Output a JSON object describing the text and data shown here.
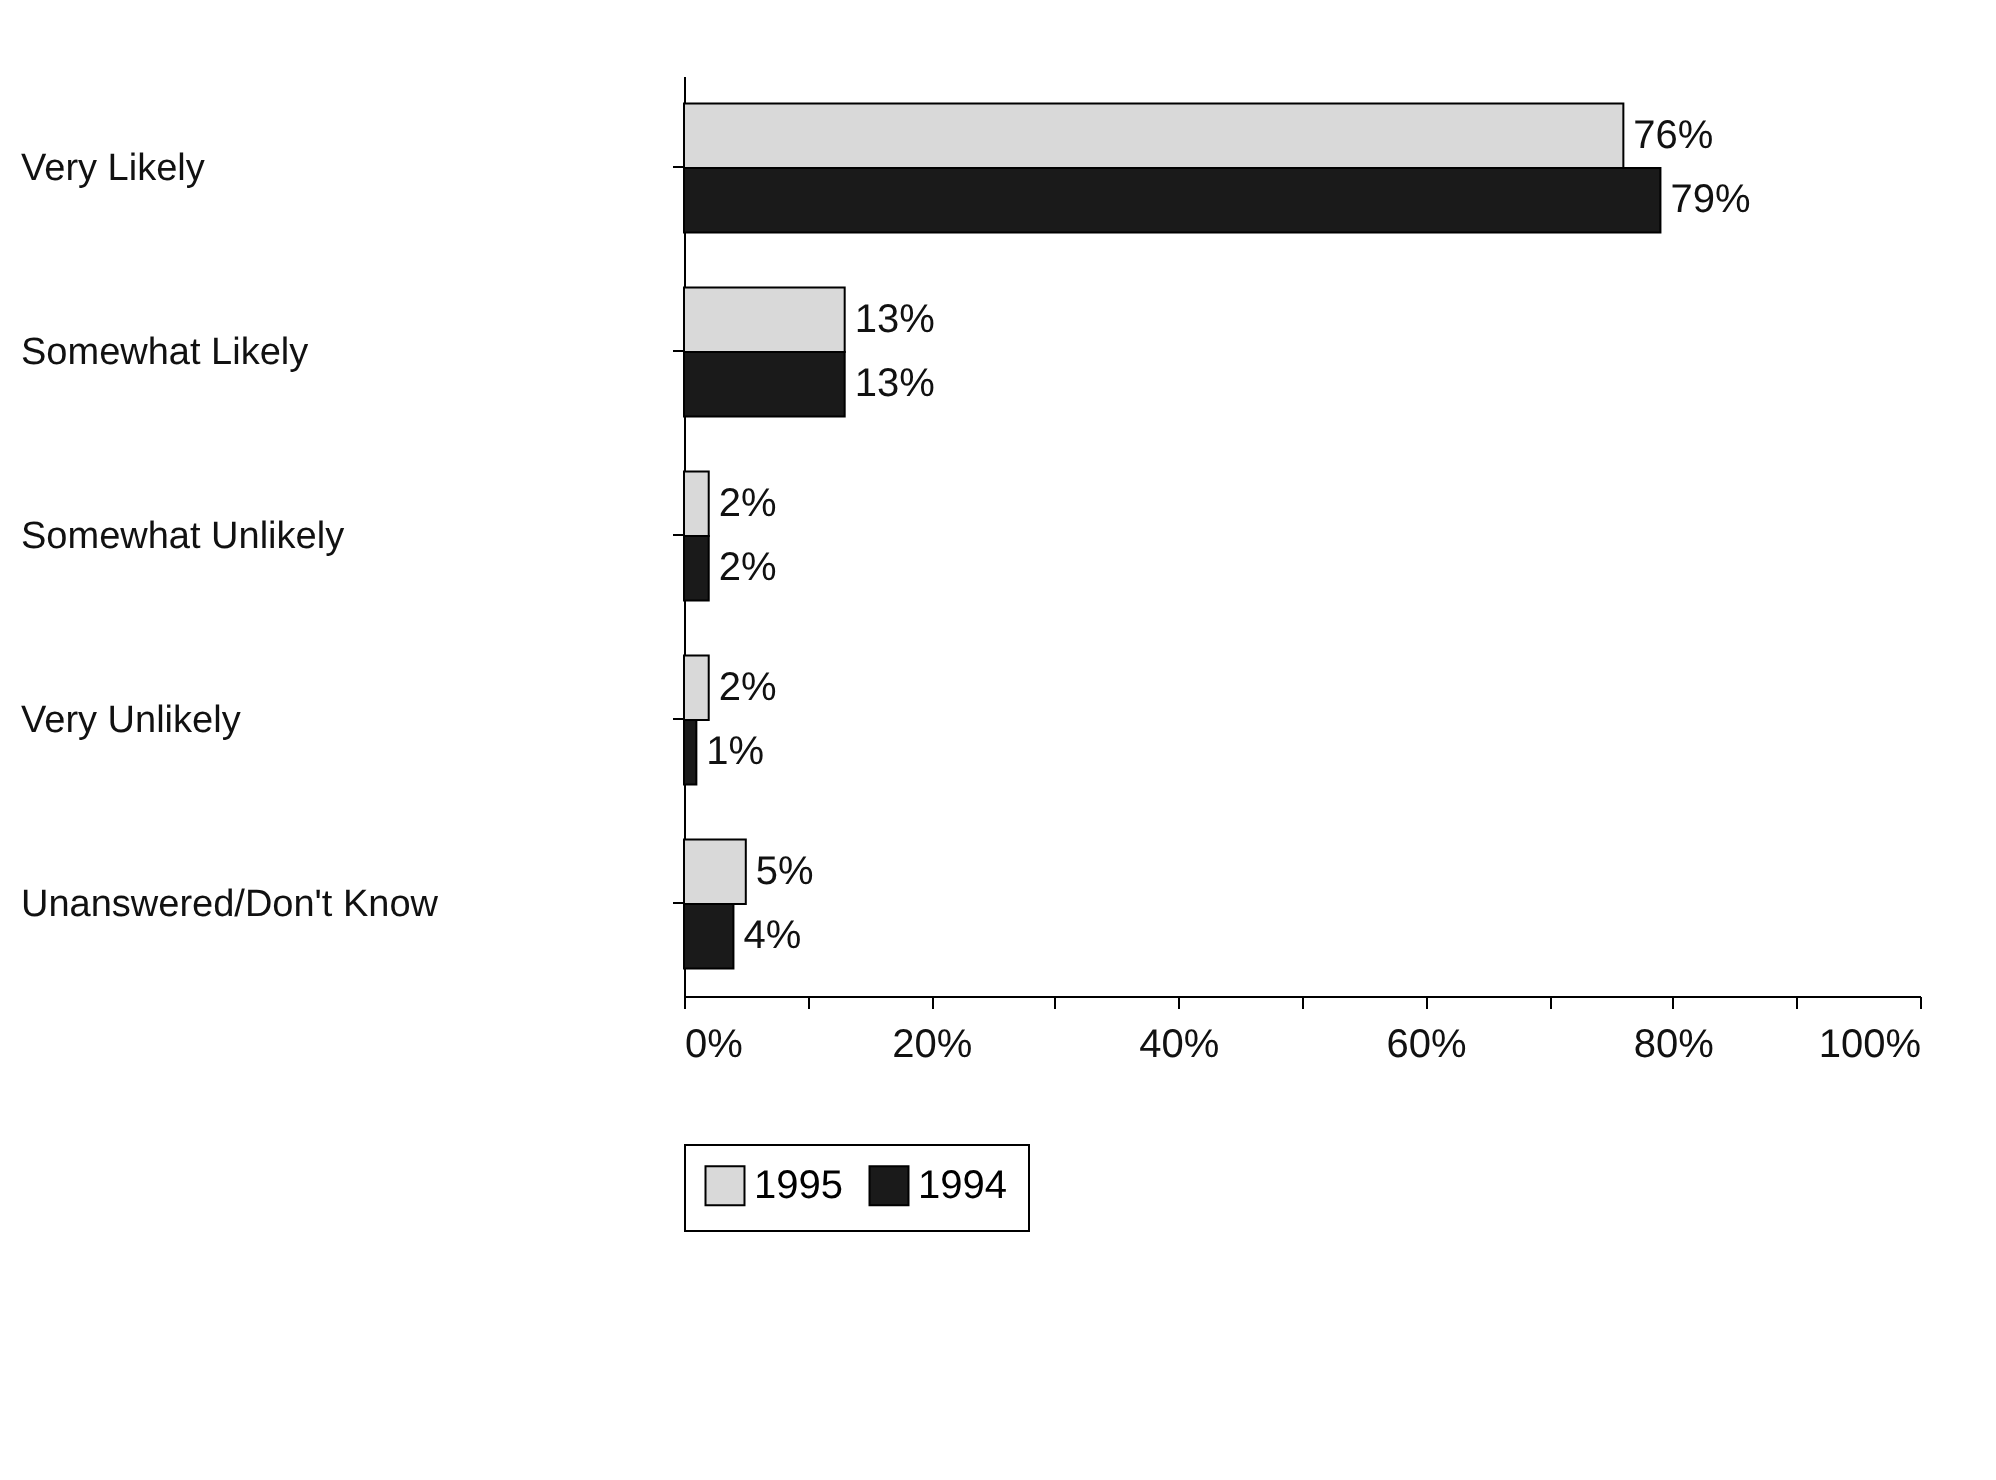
{
  "chart_data": {
    "type": "bar",
    "orientation": "horizontal",
    "categories": [
      "Very Likely",
      "Somewhat Likely",
      "Somewhat Unlikely",
      "Very Unlikely",
      "Unanswered/Don't Know"
    ],
    "series": [
      {
        "name": "1995",
        "color": "#d9d9d9",
        "values": [
          76,
          13,
          2,
          2,
          5
        ],
        "value_labels": [
          "76%",
          "13%",
          "2%",
          "2%",
          "5%"
        ]
      },
      {
        "name": "1994",
        "color": "#1a1a1a",
        "values": [
          79,
          13,
          2,
          1,
          4
        ],
        "value_labels": [
          "79%",
          "13%",
          "2%",
          "1%",
          "4%"
        ]
      }
    ],
    "xlim": [
      0,
      100
    ],
    "xticks": [
      {
        "value": 0,
        "label": "0%"
      },
      {
        "value": 10,
        "label": null
      },
      {
        "value": 20,
        "label": "20%"
      },
      {
        "value": 30,
        "label": null
      },
      {
        "value": 40,
        "label": "40%"
      },
      {
        "value": 50,
        "label": null
      },
      {
        "value": 60,
        "label": "60%"
      },
      {
        "value": 70,
        "label": null
      },
      {
        "value": 80,
        "label": "80%"
      },
      {
        "value": 90,
        "label": null
      },
      {
        "value": 100,
        "label": "100%"
      }
    ],
    "grid": false,
    "legend": "bottom"
  }
}
